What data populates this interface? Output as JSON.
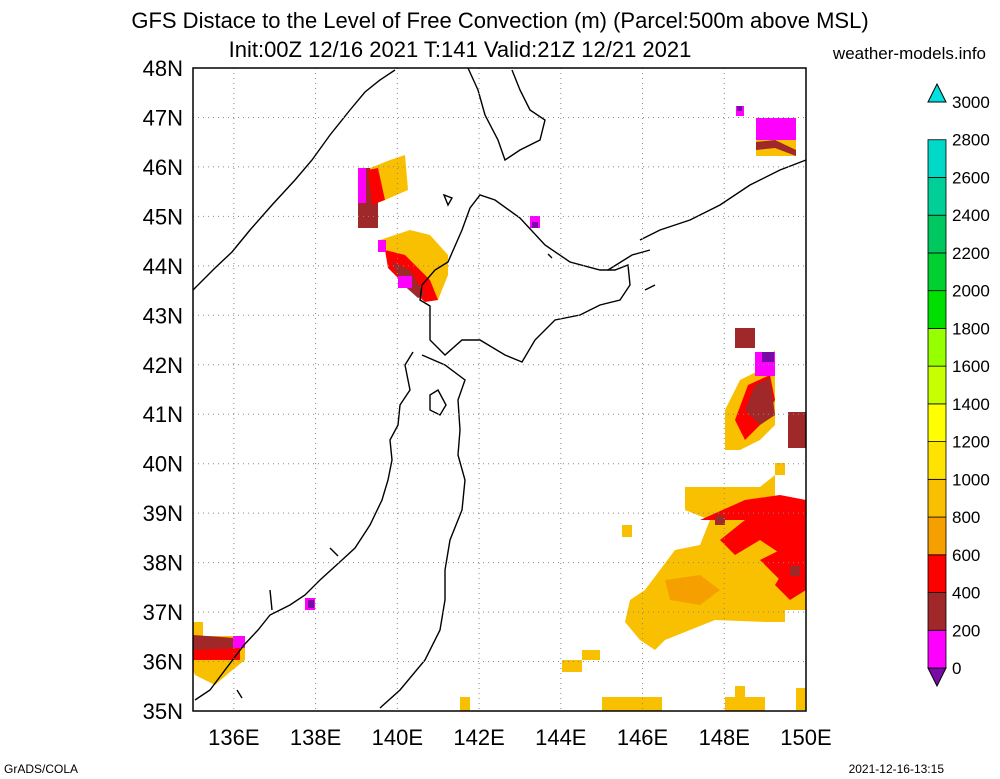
{
  "title": {
    "line1": "GFS Distace to the Level of Free Convection (m) (Parcel:500m above MSL)",
    "line2": "Init:00Z 12/16 2021 T:141 Valid:21Z 12/21 2021",
    "site": "weather-models.info"
  },
  "map": {
    "lat_range": [
      35,
      48
    ],
    "lon_range": [
      135,
      150
    ],
    "lat_labels": [
      "48N",
      "47N",
      "46N",
      "45N",
      "44N",
      "43N",
      "42N",
      "41N",
      "40N",
      "39N",
      "38N",
      "37N",
      "36N",
      "35N"
    ],
    "lon_labels": [
      "136E",
      "138E",
      "140E",
      "142E",
      "144E",
      "146E",
      "148E",
      "150E"
    ],
    "grid": "dotted"
  },
  "colorbar": {
    "labels": [
      "3000",
      "2800",
      "2600",
      "2400",
      "2200",
      "2000",
      "1800",
      "1600",
      "1400",
      "1200",
      "1000",
      "800",
      "600",
      "400",
      "200",
      "0"
    ],
    "colors": [
      "#7a0aa6",
      "#ff00ff",
      "#a02828",
      "#ff0000",
      "#f5a000",
      "#f8c000",
      "#ffe300",
      "#ffff00",
      "#c8ff00",
      "#96ff00",
      "#00e000",
      "#00d030",
      "#00c860",
      "#00d098",
      "#00d8c8",
      "#00e0e0"
    ]
  },
  "footer": {
    "left": "GrADS/COLA",
    "right": "2021-12-16-13:15"
  }
}
